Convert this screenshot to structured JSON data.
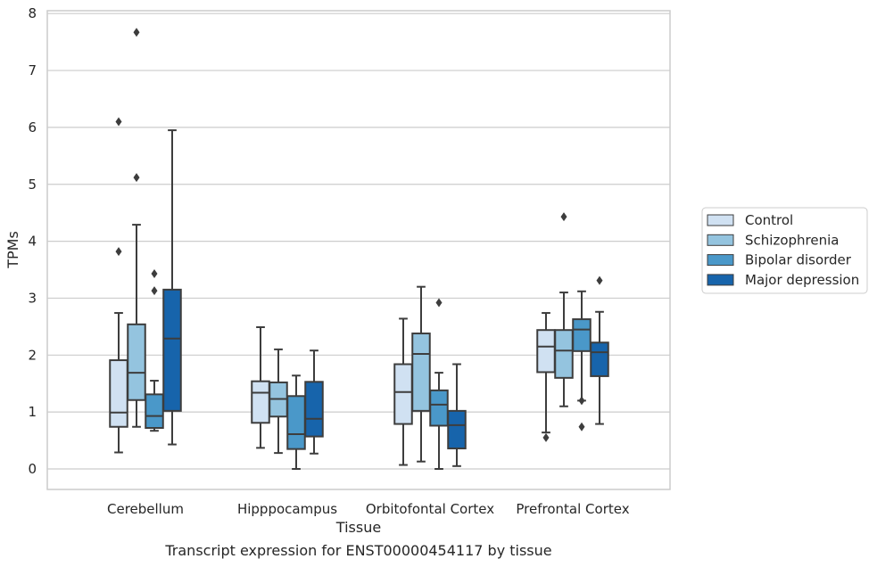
{
  "chart_data": {
    "type": "box",
    "xlabel": "Tissue",
    "ylabel": "TPMs",
    "caption": "Transcript expression for ENST00000454117 by tissue",
    "ylim": [
      -0.37,
      8.07
    ],
    "yticks": [
      0,
      1,
      2,
      3,
      4,
      5,
      6,
      7,
      8
    ],
    "grid": "horizontal",
    "legend_position": "right",
    "categories": [
      "Cerebellum",
      "Hipppocampus",
      "Orbitofontal Cortex",
      "Prefrontal Cortex"
    ],
    "series": [
      {
        "name": "Control",
        "color": "#d0e1f2",
        "boxes": [
          {
            "whisker_low": 0.29,
            "q1": 0.74,
            "median": 0.99,
            "q3": 1.91,
            "whisker_high": 2.74,
            "outliers": [
              6.1,
              3.82
            ]
          },
          {
            "whisker_low": 0.37,
            "q1": 0.81,
            "median": 1.34,
            "q3": 1.54,
            "whisker_high": 2.49,
            "outliers": []
          },
          {
            "whisker_low": 0.07,
            "q1": 0.79,
            "median": 1.35,
            "q3": 1.84,
            "whisker_high": 2.64,
            "outliers": []
          },
          {
            "whisker_low": 0.64,
            "q1": 1.7,
            "median": 2.15,
            "q3": 2.44,
            "whisker_high": 2.74,
            "outliers": [
              0.55
            ]
          }
        ]
      },
      {
        "name": "Schizophrenia",
        "color": "#94c4df",
        "boxes": [
          {
            "whisker_low": 0.74,
            "q1": 1.21,
            "median": 1.69,
            "q3": 2.54,
            "whisker_high": 4.29,
            "outliers": [
              7.67,
              5.12
            ]
          },
          {
            "whisker_low": 0.28,
            "q1": 0.92,
            "median": 1.23,
            "q3": 1.52,
            "whisker_high": 2.1,
            "outliers": []
          },
          {
            "whisker_low": 0.13,
            "q1": 1.02,
            "median": 2.02,
            "q3": 2.38,
            "whisker_high": 3.2,
            "outliers": []
          },
          {
            "whisker_low": 1.1,
            "q1": 1.6,
            "median": 2.08,
            "q3": 2.44,
            "whisker_high": 3.1,
            "outliers": [
              4.43
            ]
          }
        ]
      },
      {
        "name": "Bipolar disorder",
        "color": "#4a98c9",
        "boxes": [
          {
            "whisker_low": 0.67,
            "q1": 0.72,
            "median": 0.93,
            "q3": 1.31,
            "whisker_high": 1.55,
            "outliers": [
              3.43,
              3.13
            ]
          },
          {
            "whisker_low": 0.0,
            "q1": 0.35,
            "median": 0.61,
            "q3": 1.28,
            "whisker_high": 1.64,
            "outliers": []
          },
          {
            "whisker_low": 0.0,
            "q1": 0.76,
            "median": 1.13,
            "q3": 1.38,
            "whisker_high": 1.69,
            "outliers": [
              2.92
            ]
          },
          {
            "whisker_low": 1.2,
            "q1": 2.07,
            "median": 2.45,
            "q3": 2.63,
            "whisker_high": 3.12,
            "outliers": [
              1.2,
              0.74
            ]
          }
        ]
      },
      {
        "name": "Major depression",
        "color": "#1764ab",
        "boxes": [
          {
            "whisker_low": 0.43,
            "q1": 1.02,
            "median": 2.29,
            "q3": 3.15,
            "whisker_high": 5.95,
            "outliers": []
          },
          {
            "whisker_low": 0.27,
            "q1": 0.57,
            "median": 0.88,
            "q3": 1.53,
            "whisker_high": 2.08,
            "outliers": []
          },
          {
            "whisker_low": 0.05,
            "q1": 0.36,
            "median": 0.77,
            "q3": 1.02,
            "whisker_high": 1.84,
            "outliers": []
          },
          {
            "whisker_low": 0.79,
            "q1": 1.63,
            "median": 2.05,
            "q3": 2.22,
            "whisker_high": 2.76,
            "outliers": [
              3.31
            ]
          }
        ]
      }
    ]
  }
}
